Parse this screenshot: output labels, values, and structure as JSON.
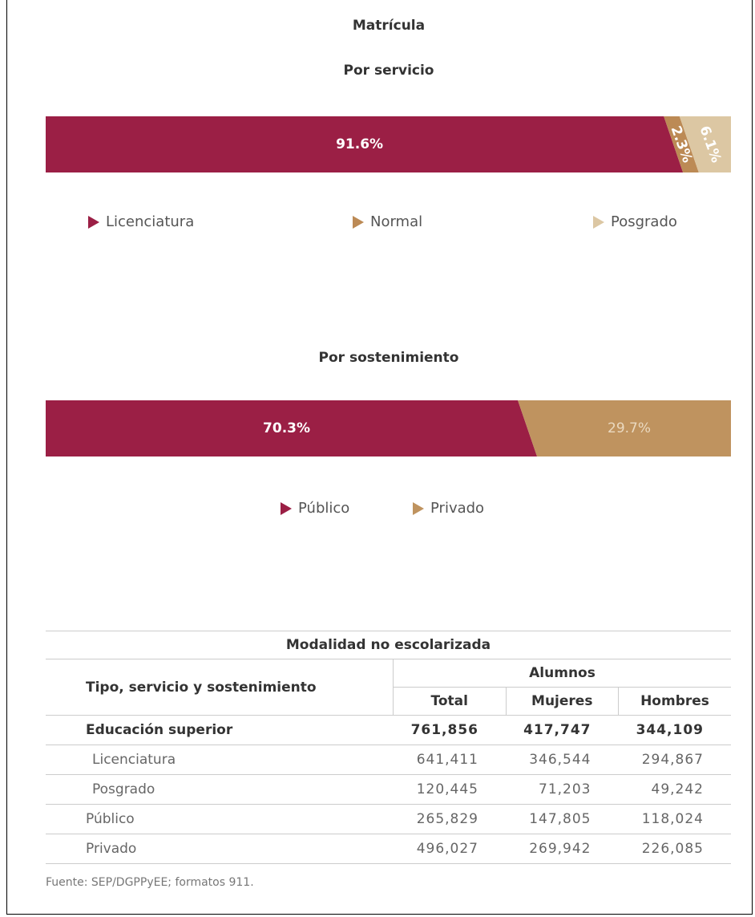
{
  "title": "Matrícula",
  "chart_data": [
    {
      "type": "bar",
      "title": "Por servicio",
      "series": [
        {
          "name": "Licenciatura",
          "color": "#9b1f45",
          "values": [
            91.6
          ],
          "value_labels": [
            "91.6%"
          ]
        },
        {
          "name": "Normal",
          "color": "#bc8a55",
          "values": [
            2.3
          ],
          "value_labels": [
            "2.3%"
          ]
        },
        {
          "name": "Posgrado",
          "color": "#dcc7a3",
          "values": [
            6.1
          ],
          "value_labels": [
            "6.1%"
          ]
        }
      ]
    },
    {
      "type": "bar",
      "title": "Por sostenimiento",
      "series": [
        {
          "name": "Público",
          "color": "#9b1f45",
          "values": [
            70.3
          ],
          "value_labels": [
            "70.3%"
          ]
        },
        {
          "name": "Privado",
          "color": "#bf935f",
          "values": [
            29.7
          ],
          "value_labels": [
            "29.7%"
          ]
        }
      ]
    }
  ],
  "table": {
    "title": "Modalidad no escolarizada",
    "row_header": "Tipo, servicio y sostenimiento",
    "group_header": "Alumnos",
    "columns": [
      "Total",
      "Mujeres",
      "Hombres"
    ],
    "rows": [
      [
        "Educación superior",
        "761,856",
        "417,747",
        "344,109"
      ],
      [
        "Licenciatura",
        "641,411",
        "346,544",
        "294,867"
      ],
      [
        "Posgrado",
        "120,445",
        "71,203",
        "49,242"
      ],
      [
        "Público",
        "265,829",
        "147,805",
        "118,024"
      ],
      [
        "Privado",
        "496,027",
        "269,942",
        "226,085"
      ]
    ]
  },
  "source": "Fuente: SEP/DGPPyEE; formatos 911."
}
